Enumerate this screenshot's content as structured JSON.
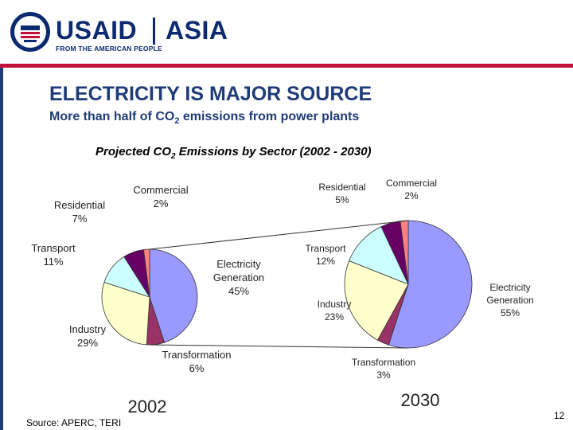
{
  "header": {
    "brand_usaid": "USAID",
    "brand_tagline": "FROM THE AMERICAN PEOPLE",
    "region": "ASIA",
    "colors": {
      "navy": "#0b2a6f",
      "red": "#c2113a"
    }
  },
  "slide": {
    "title": "ELECTRICITY IS MAJOR SOURCE",
    "subtitle_pre": "More than half of CO",
    "subtitle_sub": "2",
    "subtitle_post": " emissions from power plants",
    "chart_title_pre": "Projected CO",
    "chart_title_sub": "2",
    "chart_title_mid": " Emissions by Sector ",
    "chart_title_post": "(2002 - 2030)",
    "source": "Source: APERC, TERI",
    "page_number": "12"
  },
  "chart_data": [
    {
      "type": "pie",
      "label": "2002",
      "slices": [
        {
          "name": "Electricity Generation",
          "value": 45,
          "label_line1": "Electricity",
          "label_line2": "Generation",
          "value_label": "45%",
          "color": "#9999ff"
        },
        {
          "name": "Transformation",
          "value": 6,
          "label_line1": "Transformation",
          "value_label": "6%",
          "color": "#993366"
        },
        {
          "name": "Industry",
          "value": 29,
          "label_line1": "Industry",
          "value_label": "29%",
          "color": "#ffffcc"
        },
        {
          "name": "Transport",
          "value": 11,
          "label_line1": "Transport",
          "value_label": "11%",
          "color": "#ccffff"
        },
        {
          "name": "Residential",
          "value": 7,
          "label_line1": "Residential",
          "value_label": "7%",
          "color": "#660066"
        },
        {
          "name": "Commercial",
          "value": 2,
          "label_line1": "Commercial",
          "value_label": "2%",
          "color": "#ff8080"
        }
      ]
    },
    {
      "type": "pie",
      "label": "2030",
      "slices": [
        {
          "name": "Electricity Generation",
          "value": 55,
          "label_line1": "Electricity",
          "label_line2": "Generation",
          "value_label": "55%",
          "color": "#9999ff"
        },
        {
          "name": "Transformation",
          "value": 3,
          "label_line1": "Transformation",
          "value_label": "3%",
          "color": "#993366"
        },
        {
          "name": "Industry",
          "value": 23,
          "label_line1": "Industry",
          "value_label": "23%",
          "color": "#ffffcc"
        },
        {
          "name": "Transport",
          "value": 12,
          "label_line1": "Transport",
          "value_label": "12%",
          "color": "#ccffff"
        },
        {
          "name": "Residential",
          "value": 5,
          "label_line1": "Residential",
          "value_label": "5%",
          "color": "#660066"
        },
        {
          "name": "Commercial",
          "value": 2,
          "label_line1": "Commercial",
          "value_label": "2%",
          "color": "#ff8080"
        }
      ]
    }
  ]
}
